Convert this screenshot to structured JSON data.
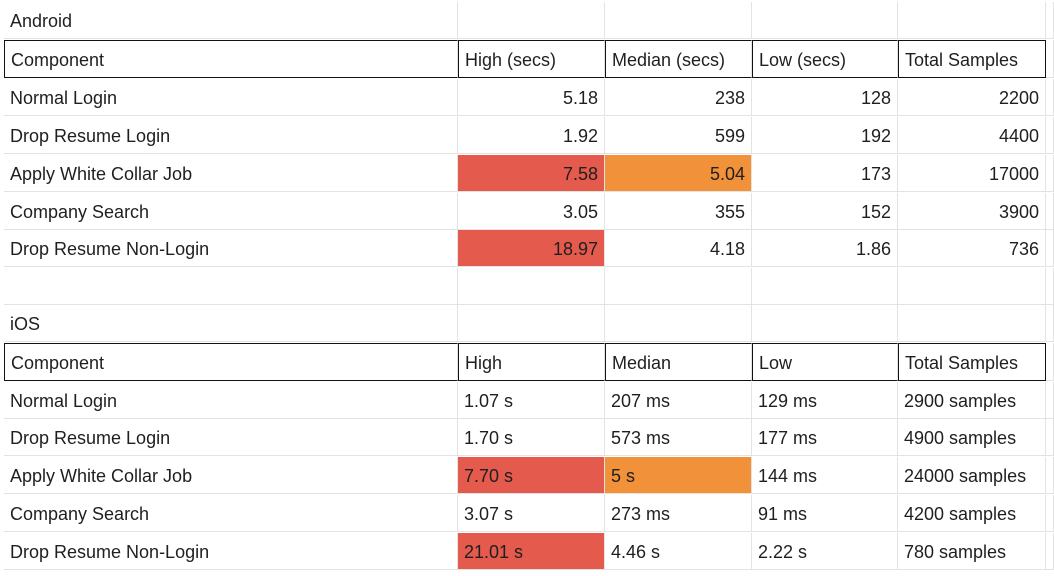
{
  "colors": {
    "high_flag": "#e45a4d",
    "median_flag": "#f1913a"
  },
  "android": {
    "section_label": "Android",
    "headers": [
      "Component",
      "High (secs)",
      "Median (secs)",
      "Low (secs)",
      "Total Samples"
    ],
    "rows": [
      [
        "Normal Login",
        "5.18",
        "238",
        "128",
        "2200"
      ],
      [
        "Drop Resume Login",
        "1.92",
        "599",
        "192",
        "4400"
      ],
      [
        "Apply White Collar Job",
        "7.58",
        "5.04",
        "173",
        "17000"
      ],
      [
        "Company Search",
        "3.05",
        "355",
        "152",
        "3900"
      ],
      [
        "Drop Resume Non-Login",
        "18.97",
        "4.18",
        "1.86",
        "736"
      ]
    ]
  },
  "ios": {
    "section_label": "iOS",
    "headers": [
      "Component",
      "High",
      "Median",
      "Low",
      "Total Samples"
    ],
    "rows": [
      [
        "Normal Login",
        "1.07 s",
        "207 ms",
        "129 ms",
        "2900 samples"
      ],
      [
        "Drop Resume Login",
        "1.70 s",
        "573 ms",
        "177 ms",
        "4900 samples"
      ],
      [
        "Apply White Collar Job",
        "7.70 s",
        "5 s",
        "144 ms",
        "24000 samples"
      ],
      [
        "Company Search",
        "3.07 s",
        "273 ms",
        "91 ms",
        "4200 samples"
      ],
      [
        "Drop Resume Non-Login",
        "21.01 s",
        "4.46 s",
        "2.22 s",
        "780 samples"
      ]
    ]
  }
}
